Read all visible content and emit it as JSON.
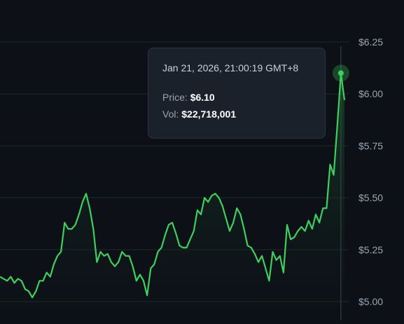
{
  "colors": {
    "background": "#0d1117",
    "grid": "#1f2a24",
    "line": "#3ecf5f",
    "area_top": "#1e6b35",
    "crosshair": "#3a4a44",
    "tick_text": "#9aa4b2",
    "tooltip_bg": "#1b212b"
  },
  "tooltip": {
    "date": "Jan 21, 2026, 21:00:19 GMT+8",
    "price_label": "Price:",
    "price_value": "$6.10",
    "vol_label": "Vol:",
    "vol_value": "$22,718,001"
  },
  "chart_data": {
    "type": "area",
    "title": "",
    "xlabel": "",
    "ylabel": "",
    "ylim": [
      4.99,
      6.25
    ],
    "y_ticks": [
      "$6.25",
      "$6.00",
      "$5.75",
      "$5.50",
      "$5.25",
      "$5.00"
    ],
    "y_tick_values": [
      6.25,
      6.0,
      5.75,
      5.5,
      5.25,
      5.0
    ],
    "grid": true,
    "highlight_index": 95,
    "series": [
      {
        "values": [
          5.12,
          5.11,
          5.1,
          5.12,
          5.09,
          5.11,
          5.1,
          5.06,
          5.05,
          5.02,
          5.05,
          5.1,
          5.1,
          5.14,
          5.12,
          5.18,
          5.22,
          5.24,
          5.38,
          5.35,
          5.35,
          5.37,
          5.42,
          5.48,
          5.52,
          5.45,
          5.35,
          5.19,
          5.24,
          5.22,
          5.23,
          5.19,
          5.17,
          5.19,
          5.24,
          5.22,
          5.22,
          5.17,
          5.1,
          5.13,
          5.1,
          5.03,
          5.16,
          5.18,
          5.24,
          5.26,
          5.32,
          5.37,
          5.38,
          5.33,
          5.27,
          5.26,
          5.26,
          5.3,
          5.34,
          5.44,
          5.42,
          5.5,
          5.48,
          5.51,
          5.52,
          5.5,
          5.46,
          5.4,
          5.34,
          5.38,
          5.45,
          5.42,
          5.35,
          5.27,
          5.26,
          5.23,
          5.19,
          5.22,
          5.16,
          5.1,
          5.24,
          5.2,
          5.22,
          5.14,
          5.37,
          5.3,
          5.31,
          5.34,
          5.36,
          5.34,
          5.39,
          5.35,
          5.42,
          5.38,
          5.45,
          5.45,
          5.66,
          5.61,
          5.85,
          6.1,
          5.97
        ]
      }
    ]
  }
}
